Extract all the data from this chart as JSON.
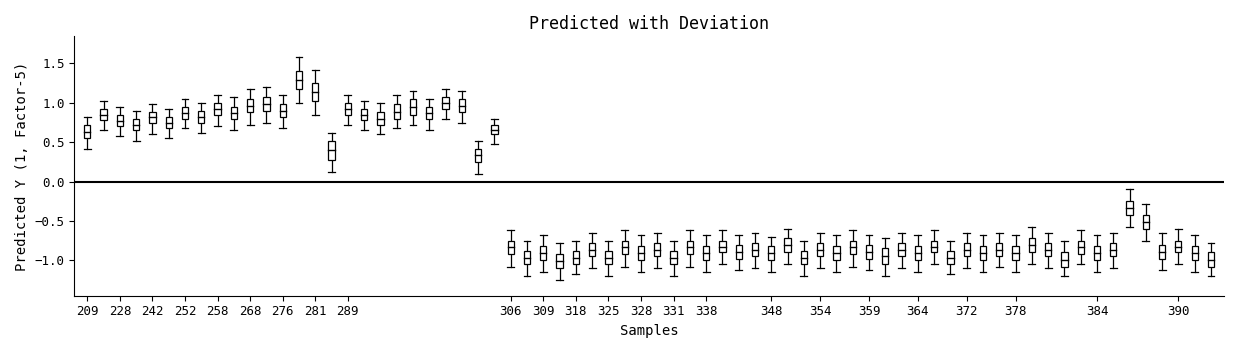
{
  "title": "Predicted with Deviation",
  "xlabel": "Samples",
  "ylabel": "Predicted Y (1, Factor-5)",
  "xtick_labels": [
    "209",
    "228",
    "242",
    "252",
    "258",
    "268",
    "276",
    "281",
    "289",
    "306",
    "309",
    "318",
    "325",
    "328",
    "331",
    "338",
    "348",
    "354",
    "359",
    "364",
    "372",
    "378",
    "384",
    "390"
  ],
  "ylim": [
    -1.45,
    1.85
  ],
  "yticks": [
    -1.0,
    -0.5,
    0.0,
    0.5,
    1.0,
    1.5
  ],
  "hline_y": 0.0,
  "boxes": [
    {
      "low": 0.42,
      "q1": 0.55,
      "q3": 0.72,
      "high": 0.82
    },
    {
      "low": 0.65,
      "q1": 0.78,
      "q3": 0.92,
      "high": 1.02
    },
    {
      "low": 0.58,
      "q1": 0.7,
      "q3": 0.85,
      "high": 0.95
    },
    {
      "low": 0.52,
      "q1": 0.65,
      "q3": 0.8,
      "high": 0.9
    },
    {
      "low": 0.6,
      "q1": 0.75,
      "q3": 0.88,
      "high": 0.98
    },
    {
      "low": 0.55,
      "q1": 0.68,
      "q3": 0.82,
      "high": 0.92
    },
    {
      "low": 0.68,
      "q1": 0.8,
      "q3": 0.95,
      "high": 1.05
    },
    {
      "low": 0.62,
      "q1": 0.75,
      "q3": 0.9,
      "high": 1.0
    },
    {
      "low": 0.7,
      "q1": 0.85,
      "q3": 1.0,
      "high": 1.1
    },
    {
      "low": 0.65,
      "q1": 0.8,
      "q3": 0.95,
      "high": 1.08
    },
    {
      "low": 0.72,
      "q1": 0.88,
      "q3": 1.05,
      "high": 1.18
    },
    {
      "low": 0.75,
      "q1": 0.9,
      "q3": 1.08,
      "high": 1.2
    },
    {
      "low": 0.68,
      "q1": 0.82,
      "q3": 0.98,
      "high": 1.1
    },
    {
      "low": 1.0,
      "q1": 1.18,
      "q3": 1.4,
      "high": 1.58
    },
    {
      "low": 0.85,
      "q1": 1.02,
      "q3": 1.25,
      "high": 1.42
    },
    {
      "low": 0.12,
      "q1": 0.28,
      "q3": 0.52,
      "high": 0.62
    },
    {
      "low": 0.72,
      "q1": 0.85,
      "q3": 1.0,
      "high": 1.1
    },
    {
      "low": 0.65,
      "q1": 0.78,
      "q3": 0.92,
      "high": 1.02
    },
    {
      "low": 0.6,
      "q1": 0.72,
      "q3": 0.88,
      "high": 1.0
    },
    {
      "low": 0.68,
      "q1": 0.8,
      "q3": 0.98,
      "high": 1.1
    },
    {
      "low": 0.72,
      "q1": 0.85,
      "q3": 1.05,
      "high": 1.15
    },
    {
      "low": 0.65,
      "q1": 0.8,
      "q3": 0.95,
      "high": 1.05
    },
    {
      "low": 0.8,
      "q1": 0.92,
      "q3": 1.08,
      "high": 1.18
    },
    {
      "low": 0.75,
      "q1": 0.88,
      "q3": 1.05,
      "high": 1.15
    },
    {
      "low": 0.1,
      "q1": 0.25,
      "q3": 0.42,
      "high": 0.52
    },
    {
      "low": 0.48,
      "q1": 0.6,
      "q3": 0.72,
      "high": 0.8
    },
    {
      "low": -1.08,
      "q1": -0.92,
      "q3": -0.75,
      "high": -0.62
    },
    {
      "low": -1.2,
      "q1": -1.05,
      "q3": -0.88,
      "high": -0.75
    },
    {
      "low": -1.15,
      "q1": -1.0,
      "q3": -0.82,
      "high": -0.68
    },
    {
      "low": -1.25,
      "q1": -1.1,
      "q3": -0.92,
      "high": -0.78
    },
    {
      "low": -1.18,
      "q1": -1.05,
      "q3": -0.88,
      "high": -0.75
    },
    {
      "low": -1.1,
      "q1": -0.95,
      "q3": -0.78,
      "high": -0.65
    },
    {
      "low": -1.2,
      "q1": -1.05,
      "q3": -0.88,
      "high": -0.75
    },
    {
      "low": -1.08,
      "q1": -0.92,
      "q3": -0.75,
      "high": -0.62
    },
    {
      "low": -1.15,
      "q1": -1.0,
      "q3": -0.82,
      "high": -0.68
    },
    {
      "low": -1.1,
      "q1": -0.95,
      "q3": -0.78,
      "high": -0.65
    },
    {
      "low": -1.2,
      "q1": -1.05,
      "q3": -0.88,
      "high": -0.75
    },
    {
      "low": -1.08,
      "q1": -0.92,
      "q3": -0.75,
      "high": -0.62
    },
    {
      "low": -1.15,
      "q1": -1.0,
      "q3": -0.82,
      "high": -0.68
    },
    {
      "low": -1.05,
      "q1": -0.9,
      "q3": -0.75,
      "high": -0.62
    },
    {
      "low": -1.12,
      "q1": -0.98,
      "q3": -0.8,
      "high": -0.68
    },
    {
      "low": -1.1,
      "q1": -0.95,
      "q3": -0.78,
      "high": -0.65
    },
    {
      "low": -1.15,
      "q1": -1.0,
      "q3": -0.82,
      "high": -0.7
    },
    {
      "low": -1.05,
      "q1": -0.9,
      "q3": -0.72,
      "high": -0.6
    },
    {
      "low": -1.2,
      "q1": -1.05,
      "q3": -0.88,
      "high": -0.75
    },
    {
      "low": -1.1,
      "q1": -0.95,
      "q3": -0.78,
      "high": -0.65
    },
    {
      "low": -1.15,
      "q1": -1.0,
      "q3": -0.82,
      "high": -0.68
    },
    {
      "low": -1.08,
      "q1": -0.92,
      "q3": -0.75,
      "high": -0.62
    },
    {
      "low": -1.12,
      "q1": -0.98,
      "q3": -0.8,
      "high": -0.68
    },
    {
      "low": -1.2,
      "q1": -1.05,
      "q3": -0.85,
      "high": -0.72
    },
    {
      "low": -1.1,
      "q1": -0.95,
      "q3": -0.78,
      "high": -0.65
    },
    {
      "low": -1.15,
      "q1": -1.0,
      "q3": -0.82,
      "high": -0.68
    },
    {
      "low": -1.05,
      "q1": -0.9,
      "q3": -0.75,
      "high": -0.62
    },
    {
      "low": -1.18,
      "q1": -1.05,
      "q3": -0.88,
      "high": -0.75
    },
    {
      "low": -1.1,
      "q1": -0.95,
      "q3": -0.78,
      "high": -0.65
    },
    {
      "low": -1.15,
      "q1": -1.0,
      "q3": -0.82,
      "high": -0.68
    },
    {
      "low": -1.08,
      "q1": -0.95,
      "q3": -0.78,
      "high": -0.65
    },
    {
      "low": -1.15,
      "q1": -1.0,
      "q3": -0.82,
      "high": -0.68
    },
    {
      "low": -1.05,
      "q1": -0.9,
      "q3": -0.72,
      "high": -0.58
    },
    {
      "low": -1.1,
      "q1": -0.95,
      "q3": -0.78,
      "high": -0.65
    },
    {
      "low": -1.2,
      "q1": -1.08,
      "q3": -0.9,
      "high": -0.75
    },
    {
      "low": -1.05,
      "q1": -0.92,
      "q3": -0.75,
      "high": -0.62
    },
    {
      "low": -1.15,
      "q1": -1.0,
      "q3": -0.82,
      "high": -0.68
    },
    {
      "low": -1.1,
      "q1": -0.95,
      "q3": -0.78,
      "high": -0.65
    },
    {
      "low": -0.58,
      "q1": -0.42,
      "q3": -0.25,
      "high": -0.1
    },
    {
      "low": -0.75,
      "q1": -0.6,
      "q3": -0.42,
      "high": -0.28
    },
    {
      "low": -1.12,
      "q1": -0.98,
      "q3": -0.8,
      "high": -0.65
    },
    {
      "low": -1.05,
      "q1": -0.9,
      "q3": -0.75,
      "high": -0.6
    },
    {
      "low": -1.15,
      "q1": -1.0,
      "q3": -0.82,
      "high": -0.68
    },
    {
      "low": -1.2,
      "q1": -1.08,
      "q3": -0.9,
      "high": -0.78
    }
  ],
  "xtick_positions": [
    1,
    3,
    5,
    7,
    9,
    11,
    13,
    15,
    17,
    27,
    29,
    31,
    33,
    35,
    37,
    39,
    43,
    46,
    49,
    52,
    55,
    58,
    63,
    68
  ],
  "box_color": "#ffffff",
  "box_edge_color": "#000000",
  "median_color": "#000000",
  "whisker_color": "#000000",
  "bg_color": "#ffffff",
  "font_family": "monospace",
  "title_fontsize": 12,
  "label_fontsize": 10,
  "tick_fontsize": 9
}
